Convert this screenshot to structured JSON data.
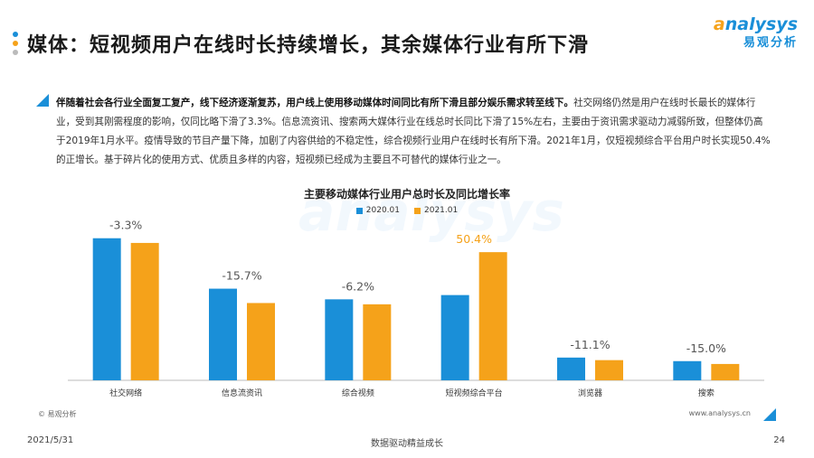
{
  "header": {
    "title": "媒体：短视频用户在线时长持续增长，其余媒体行业有所下滑",
    "logo_en_prefix": "a",
    "logo_en_rest": "nalysys",
    "logo_cn": "易观分析"
  },
  "paragraph": {
    "lead": "伴随着社会各行业全面复工复产，线下经济逐渐复苏，用户线上使用移动媒体时间同比有所下滑且部分娱乐需求转至线下。",
    "body": "社交网络仍然是用户在线时长最长的媒体行业，受到其刚需程度的影响，仅同比略下滑了3.3%。信息流资讯、搜索两大媒体行业在线总时长同比下滑了15%左右，主要由于资讯需求驱动力减弱所致，但整体仍高于2019年1月水平。疫情导致的节目产量下降，加剧了内容供给的不稳定性，综合视频行业用户在线时长有所下滑。2021年1月，仅短视频综合平台用户时长实现50.4%的正增长。基于碎片化的使用方式、优质且多样的内容，短视频已经成为主要且不可替代的媒体行业之一。"
  },
  "chart_data": {
    "type": "bar",
    "title": "主要移动媒体行业用户总时长及同比增长率",
    "categories": [
      "社交网络",
      "信息流资讯",
      "综合视频",
      "短视频综合平台",
      "浏览器",
      "搜索"
    ],
    "series": [
      {
        "name": "2020.01",
        "color": "#1a8fd8",
        "values": [
          100,
          64.5,
          57,
          60,
          16,
          13.5
        ]
      },
      {
        "name": "2021.01",
        "color": "#f5a21a",
        "values": [
          96.7,
          54.4,
          53.5,
          90.2,
          14.2,
          11.5
        ]
      }
    ],
    "growth_labels": [
      "-3.3%",
      "-15.7%",
      "-6.2%",
      "50.4%",
      "-11.1%",
      "-15.0%"
    ],
    "growth_label_colors": [
      "#555555",
      "#555555",
      "#555555",
      "#f5a21a",
      "#555555",
      "#555555"
    ],
    "ylim": [
      0,
      110
    ],
    "grid": false,
    "legend_position": "top-center"
  },
  "footer": {
    "source": "© 易观分析",
    "website": "www.analysys.cn",
    "date": "2021/5/31",
    "slogan": "数据驱动精益成长",
    "page": "24"
  },
  "colors": {
    "brand_blue": "#1a8fd8",
    "brand_orange": "#f5a21a"
  }
}
